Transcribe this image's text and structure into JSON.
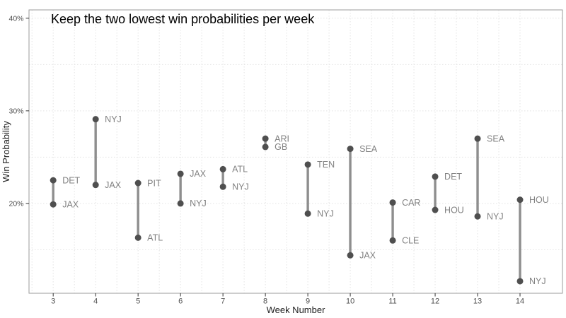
{
  "chart_data": {
    "type": "dumbbell",
    "title": "Keep the two lowest win probabilities per week",
    "xlabel": "Week Number",
    "ylabel": "Win Probability",
    "xlim": [
      2.43,
      15.0
    ],
    "ylim": [
      10.3,
      40.9
    ],
    "grid": "dotted major and minor",
    "legend": "none",
    "x_ticks": [
      {
        "value": 3,
        "label": "3"
      },
      {
        "value": 4,
        "label": "4"
      },
      {
        "value": 5,
        "label": "5"
      },
      {
        "value": 6,
        "label": "6"
      },
      {
        "value": 7,
        "label": "7"
      },
      {
        "value": 8,
        "label": "8"
      },
      {
        "value": 9,
        "label": "9"
      },
      {
        "value": 10,
        "label": "10"
      },
      {
        "value": 11,
        "label": "11"
      },
      {
        "value": 12,
        "label": "12"
      },
      {
        "value": 13,
        "label": "13"
      },
      {
        "value": 14,
        "label": "14"
      }
    ],
    "y_ticks": [
      {
        "value": 20,
        "label": "20%"
      },
      {
        "value": 30,
        "label": "30%"
      },
      {
        "value": 40,
        "label": "40%"
      }
    ],
    "y_minor": [
      15,
      25,
      35
    ],
    "weeks": [
      {
        "week": 3,
        "points": [
          {
            "team": "DET",
            "win_prob": 22.5
          },
          {
            "team": "JAX",
            "win_prob": 19.9
          }
        ]
      },
      {
        "week": 4,
        "points": [
          {
            "team": "NYJ",
            "win_prob": 29.1
          },
          {
            "team": "JAX",
            "win_prob": 22.0
          }
        ]
      },
      {
        "week": 5,
        "points": [
          {
            "team": "PIT",
            "win_prob": 22.2
          },
          {
            "team": "ATL",
            "win_prob": 16.3
          }
        ]
      },
      {
        "week": 6,
        "points": [
          {
            "team": "JAX",
            "win_prob": 23.2
          },
          {
            "team": "NYJ",
            "win_prob": 20.0
          }
        ]
      },
      {
        "week": 7,
        "points": [
          {
            "team": "ATL",
            "win_prob": 23.7
          },
          {
            "team": "NYJ",
            "win_prob": 21.8
          }
        ]
      },
      {
        "week": 8,
        "points": [
          {
            "team": "ARI",
            "win_prob": 27.0
          },
          {
            "team": "GB",
            "win_prob": 26.1
          }
        ]
      },
      {
        "week": 9,
        "points": [
          {
            "team": "TEN",
            "win_prob": 24.2
          },
          {
            "team": "NYJ",
            "win_prob": 18.9
          }
        ]
      },
      {
        "week": 10,
        "points": [
          {
            "team": "SEA",
            "win_prob": 25.9
          },
          {
            "team": "JAX",
            "win_prob": 14.4
          }
        ]
      },
      {
        "week": 11,
        "points": [
          {
            "team": "CAR",
            "win_prob": 20.1
          },
          {
            "team": "CLE",
            "win_prob": 16.0
          }
        ]
      },
      {
        "week": 12,
        "points": [
          {
            "team": "DET",
            "win_prob": 22.9
          },
          {
            "team": "HOU",
            "win_prob": 19.3
          }
        ]
      },
      {
        "week": 13,
        "points": [
          {
            "team": "SEA",
            "win_prob": 27.0
          },
          {
            "team": "NYJ",
            "win_prob": 18.6
          }
        ]
      },
      {
        "week": 14,
        "points": [
          {
            "team": "HOU",
            "win_prob": 20.4
          },
          {
            "team": "NYJ",
            "win_prob": 11.6
          }
        ]
      }
    ]
  },
  "colors": {
    "point": "#4f4f4f",
    "segment": "#8e8e8e",
    "team_label": "#828282",
    "grid": "#e3e3e3",
    "panel_border": "#9b9b9b",
    "tick": "#333333",
    "tick_label": "#4d4d4d",
    "axis_title": "#1f1f1f",
    "title": "#000000",
    "background": "#ffffff"
  }
}
